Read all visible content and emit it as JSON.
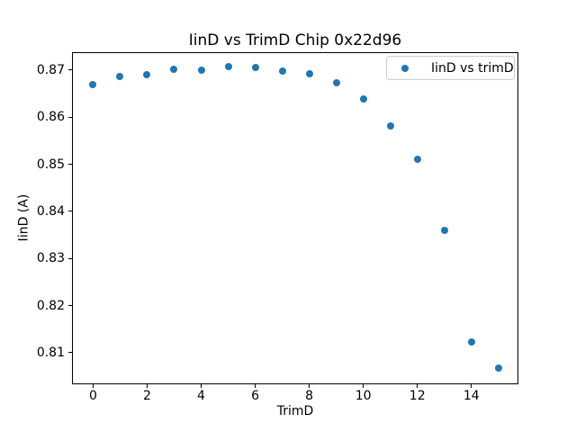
{
  "chart_data": {
    "type": "scatter",
    "title": "IinD vs TrimD Chip 0x22d96",
    "xlabel": "TrimD",
    "ylabel": "IinD (A)",
    "legend": {
      "label": "IinD vs trimD",
      "position": "upper right"
    },
    "marker_color": "#1f77b4",
    "series": [
      {
        "name": "IinD vs trimD",
        "x": [
          0,
          1,
          2,
          3,
          4,
          5,
          6,
          7,
          8,
          9,
          10,
          11,
          12,
          13,
          14,
          15
        ],
        "y": [
          0.8669,
          0.8686,
          0.869,
          0.8701,
          0.87,
          0.8707,
          0.8705,
          0.8698,
          0.8693,
          0.8673,
          0.8638,
          0.8582,
          0.8511,
          0.836,
          0.8123,
          0.8067
        ]
      }
    ],
    "xlim": [
      -0.78,
      15.74
    ],
    "ylim": [
      0.8033,
      0.8738
    ],
    "xticks": {
      "values": [
        0,
        2,
        4,
        6,
        8,
        10,
        12,
        14
      ],
      "labels": [
        "0",
        "2",
        "4",
        "6",
        "8",
        "10",
        "12",
        "14"
      ]
    },
    "yticks": {
      "values": [
        0.81,
        0.82,
        0.83,
        0.84,
        0.85,
        0.86,
        0.87
      ],
      "labels": [
        "0.81",
        "0.82",
        "0.83",
        "0.84",
        "0.85",
        "0.86",
        "0.87"
      ]
    },
    "grid": false
  }
}
